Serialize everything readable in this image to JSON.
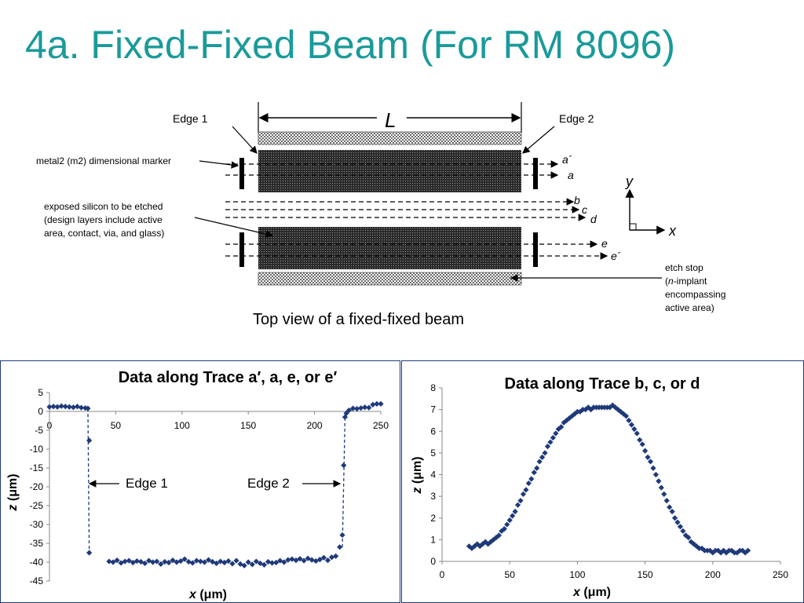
{
  "slide": {
    "title": "4a.  Fixed-Fixed Beam (For RM 8096)"
  },
  "diagram": {
    "length_label": "L",
    "edge1": "Edge 1",
    "edge2": "Edge 2",
    "marker_note": "metal2 (m2) dimensional marker",
    "exposed_lines": [
      "exposed silicon to be etched",
      "(design layers include active",
      "area, contact, via, and glass)"
    ],
    "etch_lines": [
      "etch stop",
      "-implant",
      "encompassing",
      "active area)"
    ],
    "etch_n": "n",
    "etch_paren": "(",
    "trace_labels": [
      "a´",
      "a",
      "b",
      "c",
      "d",
      "e",
      "e´"
    ],
    "axis_y": "y",
    "axis_x": "x",
    "caption": "Top view of a fixed-fixed beam",
    "beam_fill": "#4a4a4a",
    "pad_fill": "#cfcfcf"
  },
  "chart_data": [
    {
      "type": "scatter",
      "title": "Data along Trace a′, a, e, or e′",
      "xlabel_var": "x",
      "xlabel_unit": " (μm)",
      "ylabel_var": "z",
      "ylabel_unit": " (μm)",
      "xlim": [
        0,
        250
      ],
      "ylim": [
        -45,
        5
      ],
      "xticks": [
        "0",
        "50",
        "100",
        "150",
        "200",
        "250"
      ],
      "yticks": [
        "5",
        "0",
        "-5",
        "-10",
        "-15",
        "-20",
        "-25",
        "-30",
        "-35",
        "-40",
        "-45"
      ],
      "x": [
        0,
        3,
        6,
        9,
        12,
        15,
        18,
        21,
        24,
        27,
        29,
        30,
        30,
        45,
        48,
        51,
        54,
        57,
        60,
        63,
        66,
        69,
        72,
        75,
        78,
        81,
        84,
        87,
        90,
        93,
        96,
        99,
        102,
        105,
        108,
        111,
        114,
        117,
        120,
        123,
        126,
        129,
        132,
        135,
        138,
        141,
        144,
        147,
        150,
        153,
        156,
        159,
        162,
        165,
        168,
        171,
        174,
        177,
        180,
        183,
        186,
        189,
        192,
        195,
        198,
        201,
        204,
        207,
        210,
        213,
        216,
        219,
        221,
        222,
        223,
        224,
        226,
        229,
        232,
        235,
        238,
        241,
        244,
        247,
        250
      ],
      "y": [
        1.2,
        1.3,
        1.2,
        1.4,
        1.3,
        1.2,
        1.1,
        1.3,
        1.0,
        0.9,
        0.8,
        -7.7,
        -37.5,
        -39.8,
        -40.0,
        -39.5,
        -40.2,
        -39.8,
        -39.6,
        -40.1,
        -39.7,
        -39.9,
        -40.3,
        -39.6,
        -40.0,
        -39.8,
        -40.5,
        -39.9,
        -40.1,
        -39.5,
        -40.0,
        -39.7,
        -39.2,
        -39.9,
        -40.2,
        -39.6,
        -39.8,
        -40.0,
        -39.4,
        -39.9,
        -40.3,
        -39.8,
        -40.1,
        -39.7,
        -40.4,
        -39.6,
        -40.5,
        -40.9,
        -40.0,
        -40.6,
        -39.8,
        -40.3,
        -40.7,
        -39.9,
        -40.2,
        -40.1,
        -39.6,
        -40.0,
        -39.4,
        -39.2,
        -39.5,
        -39.1,
        -39.6,
        -39.0,
        -39.4,
        -39.7,
        -39.3,
        -38.8,
        -39.5,
        -38.7,
        -38.4,
        -36.0,
        -32.8,
        -14.3,
        -1.5,
        -0.5,
        0.3,
        0.8,
        0.7,
        0.9,
        1.1,
        1.0,
        1.8,
        2.0,
        2.0
      ],
      "connect_edges": [
        [
          29,
          0.8,
          30,
          -37.5
        ],
        [
          221,
          -36.0,
          223,
          -1.5
        ]
      ],
      "annotations": [
        "Edge 1",
        "Edge 2"
      ],
      "series_color": "#1f3a7a"
    },
    {
      "type": "scatter",
      "title": "Data along Trace b, c, or d",
      "xlabel_var": "x",
      "xlabel_unit": " (μm)",
      "ylabel_var": "z",
      "ylabel_unit": " (μm)",
      "xlim": [
        0,
        250
      ],
      "ylim": [
        0,
        8
      ],
      "xticks": [
        "0",
        "50",
        "100",
        "150",
        "200",
        "250"
      ],
      "yticks": [
        "8",
        "7",
        "6",
        "5",
        "4",
        "3",
        "2",
        "1",
        "0"
      ],
      "x": [
        20,
        22,
        24,
        26,
        28,
        30,
        32,
        34,
        36,
        38,
        40,
        42,
        44,
        46,
        48,
        50,
        52,
        54,
        56,
        58,
        60,
        62,
        64,
        66,
        68,
        70,
        72,
        74,
        76,
        78,
        80,
        82,
        84,
        86,
        88,
        90,
        92,
        94,
        96,
        98,
        100,
        102,
        104,
        106,
        108,
        110,
        112,
        114,
        116,
        118,
        120,
        122,
        124,
        126,
        128,
        130,
        132,
        134,
        136,
        138,
        140,
        142,
        144,
        146,
        148,
        150,
        152,
        154,
        156,
        158,
        160,
        162,
        164,
        166,
        168,
        170,
        172,
        174,
        176,
        178,
        180,
        182,
        184,
        186,
        188,
        190,
        192,
        194,
        196,
        198,
        200,
        202,
        204,
        206,
        208,
        210,
        212,
        214,
        216,
        218,
        220,
        222,
        224,
        226
      ],
      "y": [
        0.7,
        0.6,
        0.7,
        0.8,
        0.7,
        0.8,
        0.9,
        0.8,
        0.9,
        1.0,
        1.1,
        1.2,
        1.4,
        1.5,
        1.7,
        1.9,
        2.1,
        2.3,
        2.6,
        2.8,
        3.1,
        3.3,
        3.6,
        3.8,
        4.1,
        4.3,
        4.6,
        4.8,
        5.0,
        5.3,
        5.5,
        5.7,
        5.9,
        6.1,
        6.2,
        6.4,
        6.5,
        6.6,
        6.7,
        6.8,
        6.9,
        6.9,
        7.0,
        7.0,
        7.1,
        7.0,
        7.1,
        7.1,
        7.1,
        7.1,
        7.1,
        7.1,
        7.1,
        7.2,
        7.1,
        7.0,
        6.9,
        6.8,
        6.7,
        6.5,
        6.3,
        6.1,
        5.9,
        5.6,
        5.4,
        5.1,
        4.8,
        4.6,
        4.3,
        4.0,
        3.7,
        3.4,
        3.1,
        2.8,
        2.5,
        2.3,
        2.0,
        1.8,
        1.6,
        1.4,
        1.2,
        1.1,
        0.9,
        0.8,
        0.7,
        0.6,
        0.6,
        0.5,
        0.5,
        0.5,
        0.4,
        0.5,
        0.5,
        0.4,
        0.5,
        0.4,
        0.5,
        0.5,
        0.4,
        0.4,
        0.5,
        0.5,
        0.4,
        0.5
      ],
      "series_color": "#1f3a7a"
    }
  ]
}
